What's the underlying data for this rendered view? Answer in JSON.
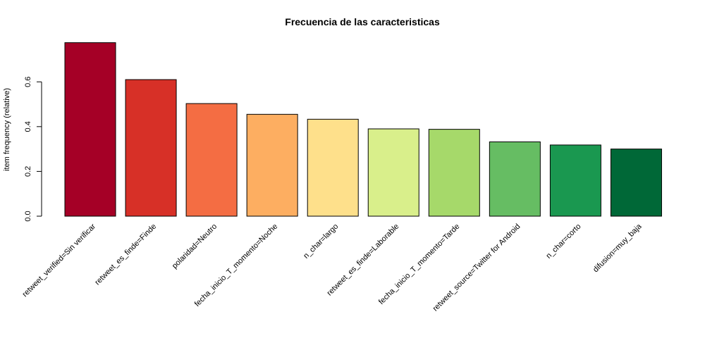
{
  "chart_data": {
    "type": "bar",
    "title": "Frecuencia de las caracteristicas",
    "xlabel": "",
    "ylabel": "item frequency (relative)",
    "ylim": [
      0,
      0.78
    ],
    "yticks": [
      0.0,
      0.2,
      0.4,
      0.6
    ],
    "ytick_labels": [
      "0.0",
      "0.2",
      "0.4",
      "0.6"
    ],
    "grid": false,
    "categories": [
      "retweet_verified=Sin verificar",
      "retweet_es_finde=Finde",
      "polaridad=Neutro",
      "fecha_inicio_T_momento=Noche",
      "n_char=largo",
      "retweet_es_finde=Laborable",
      "fecha_inicio_T_momento=Tarde",
      "retweet_source=Twitter for Android",
      "n_char=corto",
      "difusion=muy_baja"
    ],
    "values": [
      0.775,
      0.61,
      0.503,
      0.455,
      0.433,
      0.39,
      0.388,
      0.332,
      0.318,
      0.3
    ],
    "colors": [
      "#a50026",
      "#d73027",
      "#f46d43",
      "#fdae61",
      "#fee08b",
      "#d9ef8b",
      "#a6d96a",
      "#66bd63",
      "#1a9850",
      "#006837"
    ]
  }
}
